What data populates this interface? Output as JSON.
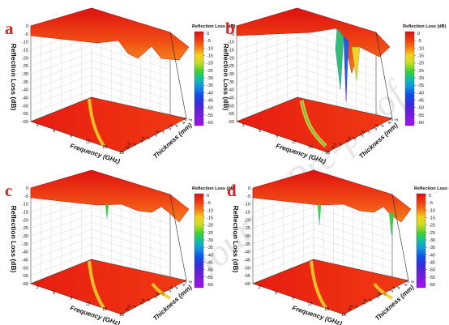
{
  "watermark": "Journal Pre-proof",
  "colorbar": {
    "stops": [
      {
        "v": 0,
        "c": "#e01010"
      },
      {
        "v": -5,
        "c": "#f03c10"
      },
      {
        "v": -10,
        "c": "#f47a10"
      },
      {
        "v": -15,
        "c": "#f6d020"
      },
      {
        "v": -20,
        "c": "#c8e020"
      },
      {
        "v": -25,
        "c": "#40d030"
      },
      {
        "v": -30,
        "c": "#10c0a0"
      },
      {
        "v": -35,
        "c": "#1098e0"
      },
      {
        "v": -40,
        "c": "#1050e8"
      },
      {
        "v": -45,
        "c": "#3030e0"
      },
      {
        "v": -50,
        "c": "#6020d8"
      },
      {
        "v": -55,
        "c": "#8818e0"
      },
      {
        "v": -60,
        "c": "#a010f0"
      }
    ]
  },
  "chart_data": [
    {
      "panel": "a",
      "type": "surface3d",
      "zlabel": "Reflection Loss (dB)",
      "xlabel": "Frequency (GHz)",
      "ylabel": "Thickness (mm)",
      "colorbar_label": "Reflection Loss (dB)",
      "x_ticks": [
        "3",
        "6",
        "9",
        "12",
        "15",
        "18"
      ],
      "y_ticks": [
        "0.5",
        "1",
        "1.5",
        "2",
        "2.5",
        "3",
        "3.5",
        "4",
        "4.5",
        "5"
      ],
      "z_ticks": [
        "0",
        "-5",
        "-10",
        "-15",
        "-20",
        "-25",
        "-30",
        "-35",
        "-40",
        "-45",
        "-50",
        "-55",
        "-60"
      ],
      "cb_ticks": [
        "0",
        "-5",
        "-10",
        "-15",
        "-20",
        "-25",
        "-30",
        "-35",
        "-40",
        "-45",
        "-50",
        "-55",
        "-60"
      ],
      "xlim": [
        2,
        18
      ],
      "ylim": [
        0.5,
        5
      ],
      "zlim": [
        -60,
        0
      ],
      "min_rl": -13
    },
    {
      "panel": "b",
      "type": "surface3d",
      "zlabel": "Reflection Loss (dB)",
      "xlabel": "Frequency (GHz)",
      "ylabel": "Thickness (mm)",
      "colorbar_label": "Reflection Loss (dB)",
      "x_ticks": [
        "3",
        "6",
        "9",
        "12",
        "15",
        "18"
      ],
      "y_ticks": [
        "0.5",
        "1",
        "1.5",
        "2",
        "2.5",
        "3",
        "3.5",
        "4",
        "4.5",
        "5"
      ],
      "z_ticks": [
        "0",
        "-5",
        "-10",
        "-15",
        "-20",
        "-25",
        "-30",
        "-35",
        "-40",
        "-45",
        "-50",
        "-55",
        "-60"
      ],
      "cb_ticks": [
        "0",
        "-5",
        "-10",
        "-15",
        "-20",
        "-25",
        "-30",
        "-35",
        "-40",
        "-45",
        "-50",
        "-55",
        "-60"
      ],
      "xlim": [
        2,
        18
      ],
      "ylim": [
        0.5,
        5
      ],
      "zlim": [
        -60,
        0
      ],
      "min_rl": -58
    },
    {
      "panel": "c",
      "type": "surface3d",
      "zlabel": "Reflection Loss (dB)",
      "xlabel": "Frequency (GHz)",
      "ylabel": "Thickness (mm)",
      "colorbar_label": "Reflection Loss (dB)",
      "x_ticks": [
        "3",
        "6",
        "9",
        "12",
        "15",
        "18"
      ],
      "y_ticks": [
        "0.5",
        "1",
        "1.5",
        "2",
        "2.5",
        "3",
        "3.5",
        "4",
        "4.5",
        "5"
      ],
      "z_ticks": [
        "0",
        "-5",
        "-10",
        "-15",
        "-20",
        "-25",
        "-30",
        "-35",
        "-40",
        "-45",
        "-50",
        "-55",
        "-60"
      ],
      "cb_ticks": [
        "0",
        "-5",
        "-10",
        "-15",
        "-20",
        "-25",
        "-30",
        "-35",
        "-40",
        "-45",
        "-50",
        "-55",
        "-60"
      ],
      "xlim": [
        2,
        18
      ],
      "ylim": [
        0.5,
        5
      ],
      "zlim": [
        -60,
        0
      ],
      "min_rl": -20
    },
    {
      "panel": "d",
      "type": "surface3d",
      "zlabel": "Reflection Loss (dB)",
      "xlabel": "Frequency (GHz)",
      "ylabel": "Thickness (mm)",
      "colorbar_label": "Reflection Loss (dB)",
      "x_ticks": [
        "3",
        "6",
        "9",
        "12",
        "15",
        "18"
      ],
      "y_ticks": [
        "0.5",
        "1",
        "1.5",
        "2",
        "2.5",
        "3",
        "3.5",
        "4",
        "4.5",
        "5"
      ],
      "z_ticks": [
        "0",
        "-5",
        "-10",
        "-15",
        "-20",
        "-25",
        "-30",
        "-35",
        "-40",
        "-45",
        "-50",
        "-55",
        "-60"
      ],
      "cb_ticks": [
        "0",
        "-5",
        "-10",
        "-15",
        "-20",
        "-25",
        "-30",
        "-35",
        "-40",
        "-45",
        "-50",
        "-55",
        "-60"
      ],
      "xlim": [
        2,
        18
      ],
      "ylim": [
        0.5,
        5
      ],
      "zlim": [
        -60,
        0
      ],
      "min_rl": -30
    }
  ]
}
